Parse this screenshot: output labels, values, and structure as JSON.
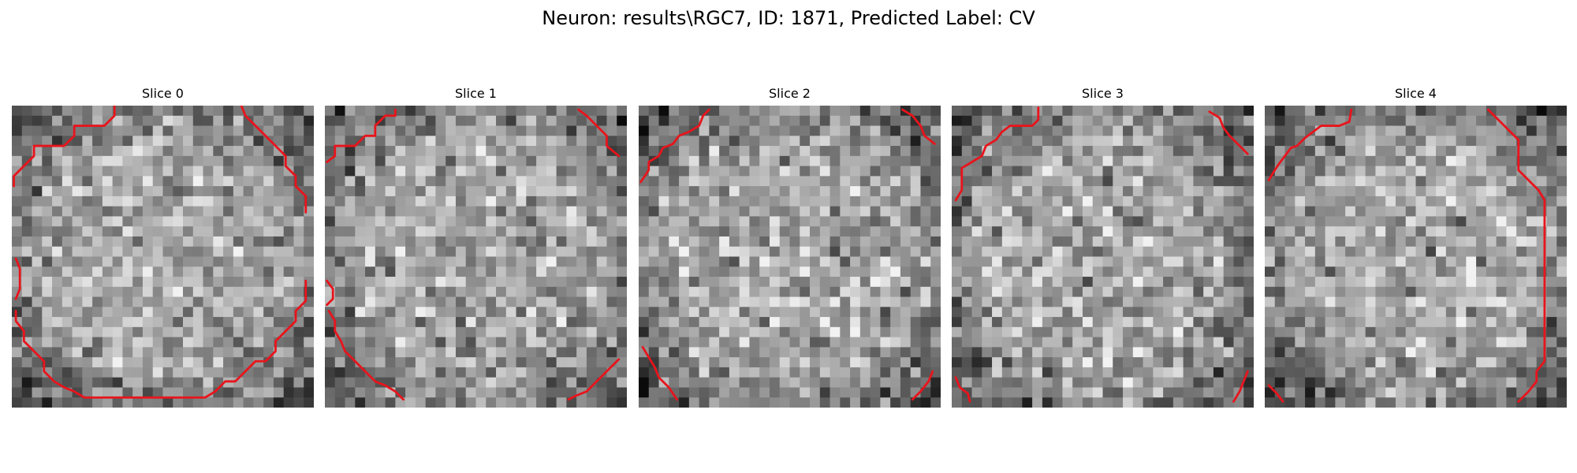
{
  "figure": {
    "title": "Neuron: results\\RGC7, ID: 1871, Predicted Label: CV"
  },
  "colors": {
    "contour": "#e8141c",
    "colormap": "gray"
  },
  "slices": [
    {
      "title": "Slice 0",
      "seed": 11
    },
    {
      "title": "Slice 1",
      "seed": 23
    },
    {
      "title": "Slice 2",
      "seed": 37
    },
    {
      "title": "Slice 3",
      "seed": 51
    },
    {
      "title": "Slice 4",
      "seed": 67
    }
  ]
}
